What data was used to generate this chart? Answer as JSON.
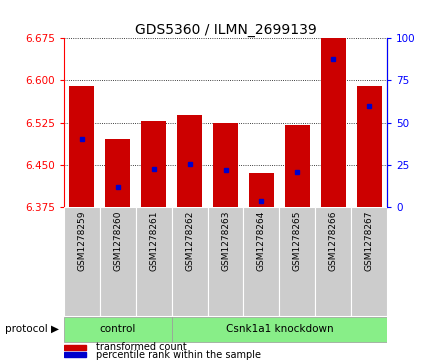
{
  "title": "GDS5360 / ILMN_2699139",
  "samples": [
    "GSM1278259",
    "GSM1278260",
    "GSM1278261",
    "GSM1278262",
    "GSM1278263",
    "GSM1278264",
    "GSM1278265",
    "GSM1278266",
    "GSM1278267"
  ],
  "bar_tops": [
    6.59,
    6.495,
    6.528,
    6.538,
    6.525,
    6.435,
    6.52,
    6.675,
    6.59
  ],
  "percentile_values": [
    6.495,
    6.41,
    6.442,
    6.452,
    6.44,
    6.385,
    6.437,
    6.638,
    6.555
  ],
  "bar_bottom": 6.375,
  "ylim": [
    6.375,
    6.675
  ],
  "y2lim": [
    0,
    100
  ],
  "yticks": [
    6.375,
    6.45,
    6.525,
    6.6,
    6.675
  ],
  "y2ticks": [
    0,
    25,
    50,
    75,
    100
  ],
  "bar_color": "#cc0000",
  "percentile_color": "#0000cc",
  "control_count": 3,
  "knockdown_count": 6,
  "control_label": "control",
  "knockdown_label": "Csnk1a1 knockdown",
  "protocol_label": "protocol",
  "legend_bar_label": "transformed count",
  "legend_pct_label": "percentile rank within the sample",
  "group_color": "#88ee88",
  "bg_color": "#cccccc",
  "plot_bg": "#ffffff",
  "title_fontsize": 10,
  "tick_fontsize": 7.5,
  "bar_width": 0.7
}
